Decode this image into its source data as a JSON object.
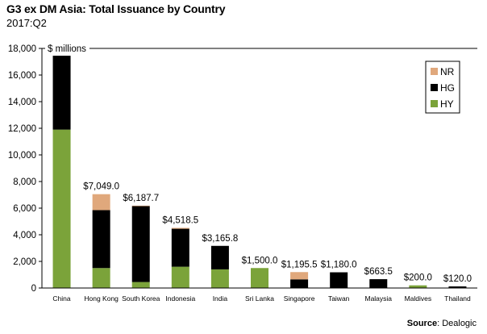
{
  "chart_data": {
    "type": "bar",
    "stacked": true,
    "title": "G3 ex DM Asia:  Total Issuance by Country",
    "subtitle": "2017:Q2",
    "ylabel": "$ millions",
    "xlabel": "",
    "ylim": [
      0,
      18000
    ],
    "yticks": [
      0,
      2000,
      4000,
      6000,
      8000,
      10000,
      12000,
      14000,
      16000,
      18000
    ],
    "ytick_labels": [
      "0",
      "2,000",
      "4,000",
      "6,000",
      "8,000",
      "10,000",
      "12,000",
      "14,000",
      "16,000",
      "18,000"
    ],
    "grid": false,
    "legend_position": "top-right",
    "categories": [
      "China",
      "Hong Kong",
      "South Korea",
      "Indonesia",
      "India",
      "Sri Lanka",
      "Singapore",
      "Taiwan",
      "Malaysia",
      "Maldives",
      "Thailand"
    ],
    "series": [
      {
        "name": "HY",
        "color": "#7ba33a",
        "values": [
          11900,
          1500,
          450,
          1600,
          1400,
          1500,
          0,
          0,
          0,
          200,
          0
        ]
      },
      {
        "name": "HG",
        "color": "#000000",
        "values": [
          5550,
          4350,
          5700,
          2850,
          1766,
          0,
          650,
          1180,
          664,
          0,
          120
        ]
      },
      {
        "name": "NR",
        "color": "#e0a87c",
        "values": [
          0,
          1199,
          38,
          69,
          0,
          0,
          546,
          0,
          0,
          0,
          0
        ]
      }
    ],
    "data_labels": [
      "",
      "$7,049.0",
      "$6,187.7",
      "$4,518.5",
      "$3,165.8",
      "$1,500.0",
      "$1,195.5",
      "$1,180.0",
      "$663.5",
      "$200.0",
      "$120.0"
    ],
    "legend_order": [
      "NR",
      "HG",
      "HY"
    ]
  },
  "source": {
    "label": "Source",
    "text": ": Dealogic"
  }
}
